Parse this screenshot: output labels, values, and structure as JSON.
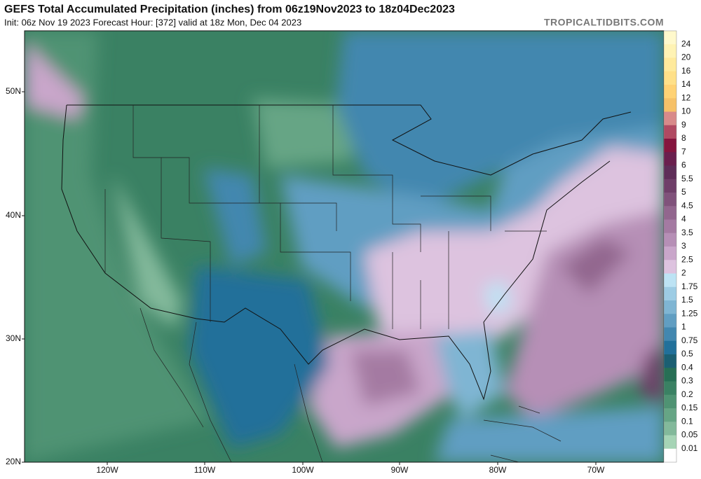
{
  "header": {
    "title": "GEFS Total Accumulated Precipitation (inches) from 06z19Nov2023 to 18z04Dec2023",
    "subtitle": "Init: 06z Nov 19 2023   Forecast Hour: [372]   valid at 18z Mon, Dec 04 2023",
    "site": "TROPICALTIDBITS.COM"
  },
  "colorbar": {
    "labels": [
      "24",
      "20",
      "16",
      "14",
      "12",
      "10",
      "9",
      "8",
      "7",
      "6",
      "5.5",
      "5",
      "4.5",
      "4",
      "3.5",
      "3",
      "2.5",
      "2",
      "1.75",
      "1.5",
      "1.25",
      "1",
      "0.75",
      "0.5",
      "0.4",
      "0.3",
      "0.2",
      "0.15",
      "0.1",
      "0.05",
      "0.01"
    ],
    "colors": [
      "#fff9cc",
      "#fff3b4",
      "#ffea9c",
      "#ffe088",
      "#ffd274",
      "#f6c168",
      "#d88a8a",
      "#b04a62",
      "#85153e",
      "#6a1f4e",
      "#5e2d58",
      "#6f3f69",
      "#80527b",
      "#92668e",
      "#a47aa2",
      "#b68fb6",
      "#c9a6ca",
      "#ddc3df",
      "#bde3f4",
      "#9dcce4",
      "#7fb5d3",
      "#619ec2",
      "#4287af",
      "#21709a",
      "#1b5f72",
      "#276f55",
      "#3a8163",
      "#4f9373",
      "#66a585",
      "#83b99b",
      "#a6d4b6",
      "#ffffff"
    ]
  },
  "axes": {
    "latitudes": [
      "50N",
      "40N",
      "30N",
      "20N"
    ],
    "longitudes": [
      "120W",
      "110W",
      "100W",
      "90W",
      "80W",
      "70W"
    ]
  }
}
